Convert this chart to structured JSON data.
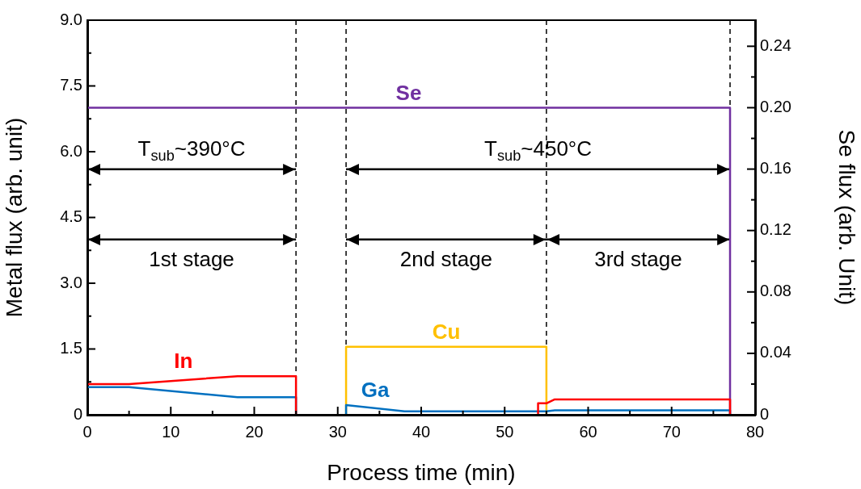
{
  "chart_data": {
    "type": "line",
    "xlabel": "Process time (min)",
    "ylabel": "Metal flux (arb. unit)",
    "y2label": "Se flux (arb. Unit)",
    "series": [
      {
        "name": "In",
        "color": "#ff0000",
        "x": [
          0,
          5,
          18,
          25,
          25,
          30,
          54,
          54,
          55,
          56,
          77,
          77
        ],
        "values": [
          0.7,
          0.7,
          0.88,
          0.88,
          0,
          null,
          0,
          0.26,
          0.26,
          0.35,
          0.35,
          0
        ]
      },
      {
        "name": "Ga",
        "color": "#0070c0",
        "x": [
          0,
          5,
          18,
          25,
          25,
          28,
          31,
          31,
          38,
          54,
          55,
          56,
          77,
          77
        ],
        "values": [
          0.63,
          0.63,
          0.4,
          0.4,
          0,
          null,
          0,
          0.22,
          0.08,
          0.08,
          0.08,
          0.1,
          0.1,
          0
        ]
      },
      {
        "name": "Cu",
        "color": "#ffc000",
        "x": [
          31,
          31,
          55,
          55
        ],
        "values": [
          0,
          1.55,
          1.55,
          0
        ]
      },
      {
        "name": "Se",
        "color": "#7030a0",
        "axis": "y2",
        "x": [
          0,
          77,
          77
        ],
        "values": [
          0.2,
          0.2,
          0
        ]
      },
      {
        "color": "#000000",
        "x": [
          0,
          25
        ],
        "values": [
          5.6,
          5.6
        ]
      },
      {
        "color": "#000000",
        "x": [
          31,
          77
        ],
        "values": [
          5.6,
          5.6
        ]
      },
      {
        "color": "#000000",
        "x": [
          0,
          25
        ],
        "values": [
          4.0,
          4.0
        ]
      },
      {
        "color": "#000000",
        "x": [
          31,
          55,
          77
        ],
        "values": [
          4.0,
          4.0,
          4.0
        ]
      }
    ],
    "annotations": [
      "T$_{sub}$~390°C",
      "T$_{sub}$~450°C",
      "1st stage",
      "2nd stage",
      "3rd stage"
    ],
    "xlim": [
      0,
      80
    ],
    "xticks": [
      0,
      {
        "value": 5,
        "label": null
      },
      10,
      {
        "value": 15,
        "label": null
      },
      20,
      {
        "value": 25,
        "label": null
      },
      30,
      {
        "value": 35,
        "label": null
      },
      40,
      {
        "value": 45,
        "label": null
      },
      50,
      {
        "value": 55,
        "label": null
      },
      60,
      {
        "value": 65,
        "label": null
      },
      70,
      {
        "value": 75,
        "label": null
      },
      80
    ],
    "ylim": [
      0,
      9
    ],
    "yticks": [
      0,
      {
        "value": 0.75,
        "label": null
      },
      1.5,
      {
        "value": 2.25,
        "label": null
      },
      {
        "value": 3,
        "label": "3.0"
      },
      {
        "value": 3.75,
        "label": null
      },
      4.5,
      {
        "value": 5.25,
        "label": null
      },
      {
        "value": 6,
        "label": "6.0"
      },
      {
        "value": 6.75,
        "label": null
      },
      7.5,
      {
        "value": 8.25,
        "label": null
      },
      {
        "value": 9,
        "label": "9.0"
      }
    ],
    "y2lim": [
      0,
      0.257
    ],
    "y2ticks": [
      0,
      {
        "value": 0.02,
        "label": null
      },
      0.04,
      {
        "value": 0.06,
        "label": null
      },
      0.08,
      {
        "value": 0.1,
        "label": null
      },
      0.12,
      {
        "value": 0.14,
        "label": null
      },
      0.16,
      {
        "value": 0.18,
        "label": null
      },
      {
        "value": 0.2,
        "label": "0.20"
      },
      {
        "value": 0.22,
        "label": null
      },
      0.24
    ],
    "ref_lines": [
      {
        "axis": "x",
        "value": 25,
        "color": "#000000",
        "line_style": "dashed"
      },
      {
        "axis": "x",
        "value": 31,
        "color": "#000000",
        "line_style": "dashed"
      },
      {
        "axis": "x",
        "value": 55,
        "color": "#000000",
        "line_style": "dashed"
      },
      {
        "axis": "x",
        "value": 77,
        "color": "#000000",
        "line_style": "dashed"
      }
    ],
    "grid": false,
    "legend": false,
    "marker": "none",
    "line_style": "solid"
  }
}
